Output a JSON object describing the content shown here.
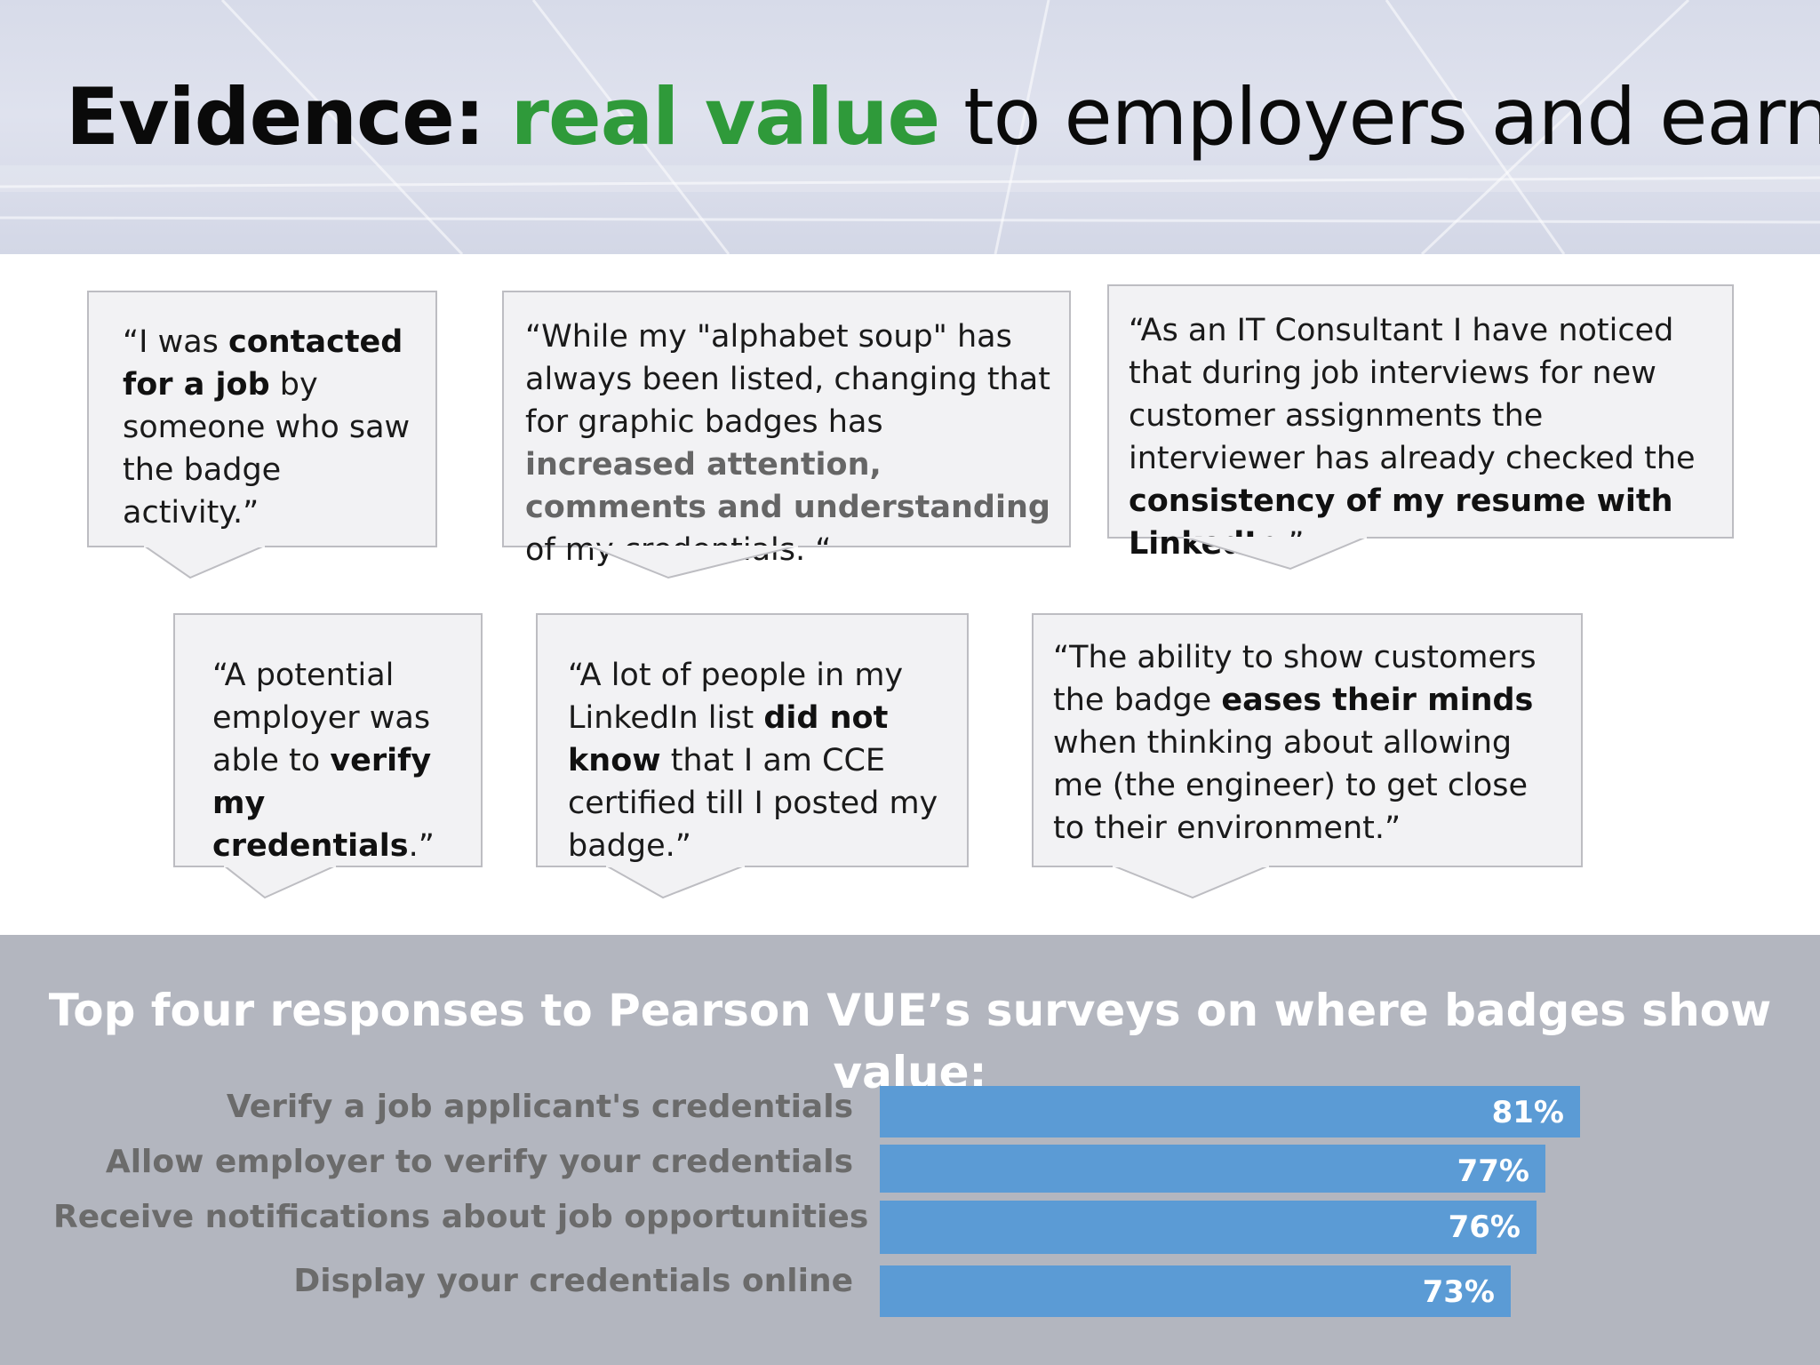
{
  "header": {
    "title_lead": "Evidence: ",
    "title_accent": "real value",
    "title_rest": " to employers and earners"
  },
  "quotes": [
    {
      "p1": "“I was ",
      "b1": "contacted for a job",
      "p2": " by someone who saw the badge activity.”"
    },
    {
      "p1": "“While my \"alphabet soup\" has always been listed, changing that for graphic badges has ",
      "b1": "increased attention, comments and understanding",
      "p2": " of my credentials. “"
    },
    {
      "p1": "“As an IT Consultant I have noticed that during job interviews for new customer assignments the interviewer has already checked the ",
      "b1": "consistency of my resume with LinkedIn",
      "p2": ".”"
    },
    {
      "p1": "“A potential employer was able to ",
      "b1": "verify my credentials",
      "p2": ".”"
    },
    {
      "p1": "“A lot of people in my LinkedIn list ",
      "b1": "did not know",
      "p2": " that I am CCE certified till I posted my badge.”"
    },
    {
      "p1": "“The ability to show customers the badge ",
      "b1": "eases their minds",
      "p2": " when thinking about allowing me (the engineer) to get close to their environment.”"
    }
  ],
  "survey": {
    "title": "Top four responses to Pearson VUE’s surveys on where badges show value:"
  },
  "colors": {
    "accent_green": "#2f9a3a",
    "bar_blue": "#5b9bd5",
    "panel_grey": "#b3b6bf"
  },
  "chart_data": {
    "type": "bar",
    "orientation": "horizontal",
    "title": "Top four responses to Pearson VUE’s surveys on where badges show value:",
    "categories": [
      "Verify a job applicant's credentials",
      "Allow employer to verify your credentials",
      "Receive notifications about job opportunities",
      "Display your credentials online"
    ],
    "values": [
      81,
      77,
      76,
      73
    ],
    "value_labels": [
      "81%",
      "77%",
      "76%",
      "73%"
    ],
    "unit": "%",
    "xlim": [
      0,
      100
    ],
    "grid": false,
    "legend": "none"
  }
}
